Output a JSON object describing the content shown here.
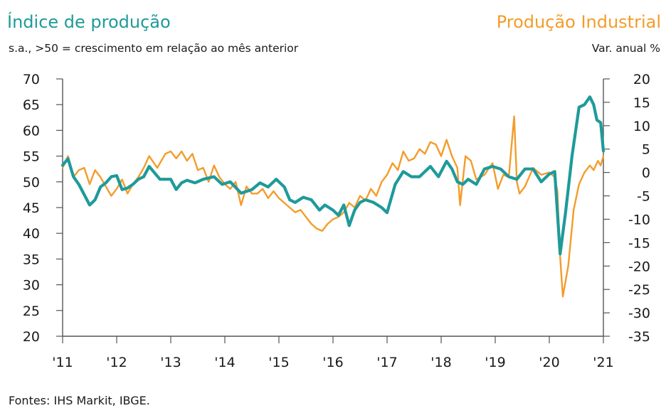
{
  "chart_data": {
    "type": "line",
    "title": "Índice de produção",
    "subtitle": "s.a., >50 = crescimento em relação ao mês anterior",
    "right_title": "Produção Industrial",
    "right_subtitle": "Var. anual %",
    "source": "Fontes: IHS Markit, IBGE.",
    "x_ticks": [
      "'11",
      "'12",
      "'13",
      "'14",
      "'15",
      "'16",
      "'17",
      "'18",
      "'19",
      "'20",
      "'21"
    ],
    "x_range": [
      2011.0,
      2021.0
    ],
    "y_left": {
      "ylim": [
        20,
        70
      ],
      "ticks": [
        20,
        25,
        30,
        35,
        40,
        45,
        50,
        55,
        60,
        65,
        70
      ]
    },
    "y_right": {
      "ylim": [
        -35,
        20
      ],
      "ticks": [
        -35,
        -30,
        -25,
        -20,
        -15,
        -10,
        -5,
        0,
        5,
        10,
        15,
        20
      ]
    },
    "grid": false,
    "colors": {
      "pmi": "#1f9a9a",
      "industrial": "#f39c2a",
      "axis": "#555555"
    },
    "series": [
      {
        "axis": "left",
        "x": [
          2011.0,
          2011.1,
          2011.2,
          2011.3,
          2011.4,
          2011.5,
          2011.6,
          2011.7,
          2011.8,
          2011.9,
          2012.0,
          2012.1,
          2012.2,
          2012.3,
          2012.4,
          2012.5,
          2012.6,
          2012.8,
          2013.0,
          2013.1,
          2013.2,
          2013.3,
          2013.45,
          2013.6,
          2013.8,
          2013.95,
          2014.1,
          2014.3,
          2014.5,
          2014.65,
          2014.8,
          2014.95,
          2015.1,
          2015.2,
          2015.3,
          2015.45,
          2015.6,
          2015.75,
          2015.85,
          2016.0,
          2016.1,
          2016.2,
          2016.3,
          2016.4,
          2016.5,
          2016.6,
          2016.75,
          2016.9,
          2017.0,
          2017.15,
          2017.3,
          2017.45,
          2017.6,
          2017.8,
          2017.95,
          2018.1,
          2018.2,
          2018.3,
          2018.4,
          2018.5,
          2018.65,
          2018.8,
          2018.95,
          2019.1,
          2019.25,
          2019.4,
          2019.55,
          2019.7,
          2019.85,
          2020.0,
          2020.1,
          2020.2,
          2020.3,
          2020.42,
          2020.55,
          2020.65,
          2020.75,
          2020.82,
          2020.88,
          2020.95,
          2021.0
        ],
        "values": [
          53.2,
          54.5,
          51.0,
          49.5,
          47.5,
          45.5,
          46.5,
          49.0,
          49.8,
          51.0,
          51.2,
          48.5,
          48.8,
          49.5,
          50.5,
          51.0,
          53.0,
          50.5,
          50.5,
          48.5,
          49.8,
          50.3,
          49.8,
          50.5,
          51.0,
          49.5,
          50.0,
          47.8,
          48.5,
          49.8,
          49.0,
          50.5,
          49.0,
          46.5,
          46.0,
          47.0,
          46.5,
          44.5,
          45.5,
          44.5,
          43.5,
          45.5,
          41.5,
          44.5,
          46.0,
          46.5,
          46.0,
          45.0,
          44.0,
          49.5,
          52.0,
          51.0,
          51.0,
          53.0,
          51.0,
          54.0,
          52.5,
          50.0,
          49.5,
          50.5,
          49.5,
          52.5,
          53.0,
          52.5,
          51.0,
          50.5,
          52.5,
          52.5,
          50.0,
          51.5,
          52.0,
          36.0,
          44.0,
          55.0,
          64.5,
          65.0,
          66.5,
          65.0,
          62.0,
          61.5,
          56.0
        ]
      },
      {
        "axis": "right",
        "x": [
          2011.0,
          2011.1,
          2011.2,
          2011.3,
          2011.4,
          2011.5,
          2011.6,
          2011.7,
          2011.8,
          2011.9,
          2012.0,
          2012.1,
          2012.2,
          2012.3,
          2012.4,
          2012.5,
          2012.6,
          2012.75,
          2012.9,
          2013.0,
          2013.1,
          2013.2,
          2013.3,
          2013.4,
          2013.5,
          2013.6,
          2013.7,
          2013.8,
          2013.9,
          2014.0,
          2014.1,
          2014.2,
          2014.3,
          2014.4,
          2014.5,
          2014.6,
          2014.7,
          2014.8,
          2014.9,
          2015.0,
          2015.1,
          2015.2,
          2015.3,
          2015.4,
          2015.5,
          2015.6,
          2015.7,
          2015.8,
          2015.9,
          2016.0,
          2016.1,
          2016.2,
          2016.3,
          2016.4,
          2016.5,
          2016.6,
          2016.7,
          2016.8,
          2016.9,
          2017.0,
          2017.1,
          2017.2,
          2017.3,
          2017.4,
          2017.5,
          2017.6,
          2017.7,
          2017.8,
          2017.9,
          2018.0,
          2018.1,
          2018.2,
          2018.3,
          2018.35,
          2018.45,
          2018.55,
          2018.65,
          2018.8,
          2018.95,
          2019.05,
          2019.15,
          2019.25,
          2019.35,
          2019.4,
          2019.45,
          2019.55,
          2019.7,
          2019.85,
          2020.0,
          2020.1,
          2020.15,
          2020.2,
          2020.25,
          2020.35,
          2020.45,
          2020.55,
          2020.65,
          2020.75,
          2020.82,
          2020.9,
          2020.95,
          2021.0
        ],
        "values": [
          1.0,
          3.5,
          -1.0,
          0.5,
          1.0,
          -2.5,
          0.5,
          -1.0,
          -3.0,
          -5.0,
          -3.5,
          -1.5,
          -4.5,
          -2.5,
          -1.0,
          1.0,
          3.5,
          1.0,
          4.0,
          4.5,
          3.0,
          4.5,
          2.5,
          4.0,
          0.5,
          1.0,
          -2.0,
          1.5,
          -1.0,
          -2.5,
          -3.5,
          -2.0,
          -7.0,
          -3.0,
          -4.5,
          -4.5,
          -3.5,
          -5.5,
          -4.0,
          -5.5,
          -6.5,
          -7.5,
          -8.5,
          -8.0,
          -9.5,
          -11.0,
          -12.0,
          -12.5,
          -11.0,
          -10.0,
          -9.5,
          -8.5,
          -6.5,
          -7.5,
          -5.0,
          -6.0,
          -3.5,
          -5.0,
          -2.0,
          -0.5,
          2.0,
          0.5,
          4.5,
          2.5,
          3.0,
          5.0,
          4.0,
          6.5,
          6.0,
          3.5,
          7.0,
          3.5,
          1.0,
          -7.0,
          3.5,
          2.5,
          -1.5,
          -0.5,
          2.0,
          -3.5,
          -0.5,
          -1.0,
          12.0,
          -2.0,
          -4.5,
          -3.0,
          1.0,
          -0.5,
          0.0,
          -1.0,
          -4.0,
          -18.0,
          -26.5,
          -20.0,
          -8.0,
          -2.5,
          0.0,
          1.5,
          0.5,
          2.5,
          1.5,
          3.5
        ]
      }
    ]
  }
}
